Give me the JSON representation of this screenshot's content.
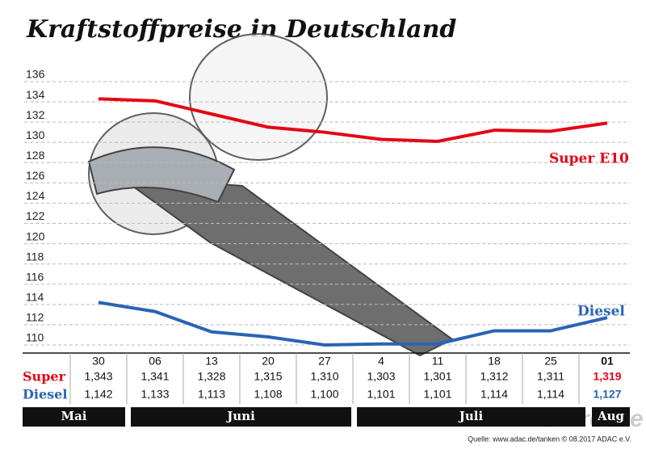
{
  "chart_data": {
    "type": "line",
    "title": "Kraftstoffpreise in Deutschland",
    "categories": [
      "30",
      "06",
      "13",
      "20",
      "27",
      "4",
      "11",
      "18",
      "25",
      "01"
    ],
    "series": [
      {
        "name": "Super E10",
        "row_label": "Super",
        "color": "#e30613",
        "values": [
          134.3,
          134.1,
          132.8,
          131.5,
          131.0,
          130.3,
          130.1,
          131.2,
          131.1,
          131.9
        ],
        "value_labels": [
          "1,343",
          "1,341",
          "1,328",
          "1,315",
          "1,310",
          "1,303",
          "1,301",
          "1,312",
          "1,311",
          "1,319"
        ]
      },
      {
        "name": "Diesel",
        "row_label": "Diesel",
        "color": "#2a63b5",
        "values": [
          114.2,
          113.3,
          111.3,
          110.8,
          110.0,
          110.1,
          110.1,
          111.4,
          111.4,
          112.7
        ],
        "value_labels": [
          "1,142",
          "1,133",
          "1,113",
          "1,108",
          "1,100",
          "1,101",
          "1,101",
          "1,114",
          "1,114",
          "1,127"
        ]
      }
    ],
    "months": [
      "Mai",
      "Juni",
      "Juli",
      "Aug"
    ],
    "ylim": [
      110,
      136
    ],
    "yticks": [
      110,
      112,
      114,
      116,
      118,
      120,
      122,
      124,
      126,
      128,
      130,
      132,
      134,
      136
    ],
    "grid": true,
    "source": "Quelle: www.adac.de/tanken  © 08.2017  ADAC e.V.",
    "watermark": "ADAC Presse"
  }
}
